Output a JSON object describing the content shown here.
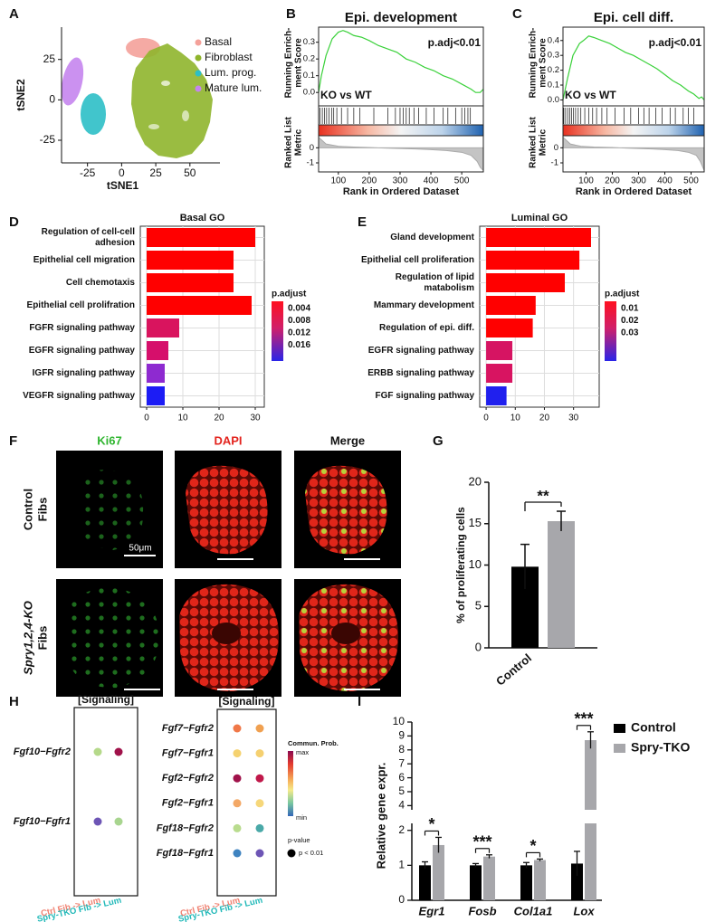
{
  "panel_labels": [
    "A",
    "B",
    "C",
    "D",
    "E",
    "F",
    "G",
    "H",
    "I"
  ],
  "micrographs": {
    "columns": [
      "Ki67",
      "DAPI",
      "Merge"
    ],
    "column_colors": [
      "#2fb52f",
      "#e3231d",
      "#111111"
    ],
    "rows": [
      [
        "Control",
        "Fibs"
      ],
      [
        "Spry1,2,4-KO",
        "Fibs"
      ]
    ],
    "scale_bar": "50μm"
  },
  "chart_data": [
    {
      "type": "scatter",
      "xlabel": "tSNE1",
      "ylabel": "tSNE2",
      "xlim": [
        -44,
        72
      ],
      "ylim": [
        -39,
        45
      ],
      "xticks": [
        -25,
        0,
        25,
        50
      ],
      "yticks": [
        -25,
        0,
        25
      ],
      "series": [
        {
          "name": "Basal",
          "color": "#f4a19a"
        },
        {
          "name": "Fibroblast",
          "color": "#8fb52c"
        },
        {
          "name": "Lum. prog.",
          "color": "#2cbfc6"
        },
        {
          "name": "Mature lum.",
          "color": "#c585ee"
        }
      ]
    },
    {
      "type": "gsea",
      "title": "Epi. development",
      "annotation": "p.adj<0.01",
      "comparison": "KO vs WT",
      "ylabel": [
        "Running Enrich-",
        "ment Score"
      ],
      "metric_label": [
        "Ranked List",
        "Metric"
      ],
      "xlabel": "Rank in Ordered Dataset",
      "xlim": [
        36,
        570
      ],
      "xticks": [
        100,
        200,
        300,
        400,
        500
      ],
      "ylim": [
        -0.08,
        0.39
      ],
      "yticks": [
        {
          "value": 0,
          "label": "0.0"
        },
        0.1,
        0.2,
        0.3
      ],
      "color": "#3ad13a",
      "x": [
        36,
        45,
        60,
        80,
        100,
        115,
        130,
        150,
        175,
        200,
        230,
        260,
        290,
        320,
        350,
        380,
        410,
        440,
        470,
        500,
        530,
        545,
        560,
        570
      ],
      "values": [
        0.0,
        0.1,
        0.22,
        0.32,
        0.36,
        0.37,
        0.36,
        0.34,
        0.33,
        0.31,
        0.28,
        0.26,
        0.24,
        0.2,
        0.18,
        0.15,
        0.13,
        0.1,
        0.08,
        0.05,
        0.02,
        0.0,
        0.0,
        0.02
      ],
      "hits": [
        40,
        48,
        55,
        62,
        70,
        78,
        85,
        95,
        110,
        130,
        150,
        170,
        215,
        260,
        285,
        300,
        310,
        320,
        330,
        345,
        360,
        385,
        410,
        440,
        455,
        480,
        500,
        510,
        520,
        528
      ],
      "metric_ylim": [
        -1.6,
        0.8
      ],
      "metric_yticks": [
        -1,
        0
      ],
      "metric_x": [
        36,
        60,
        100,
        150,
        200,
        250,
        300,
        350,
        400,
        450,
        500,
        530,
        550,
        560,
        570
      ],
      "metric_values": [
        0.7,
        0.25,
        0.1,
        0.05,
        0.02,
        -0.02,
        -0.05,
        -0.08,
        -0.12,
        -0.18,
        -0.3,
        -0.5,
        -0.9,
        -1.3,
        -1.5
      ]
    },
    {
      "type": "gsea",
      "title": "Epi. cell diff.",
      "annotation": "p.adj<0.01",
      "comparison": "KO vs WT",
      "ylabel": [
        "Running Enrich-",
        "ment Score"
      ],
      "metric_label": [
        "Ranked List",
        "Metric"
      ],
      "xlabel": "Rank in Ordered Dataset",
      "xlim": [
        12,
        550
      ],
      "xticks": [
        100,
        200,
        300,
        400,
        500
      ],
      "ylim": [
        -0.04,
        0.49
      ],
      "yticks": [
        {
          "value": 0,
          "label": "0.0"
        },
        0.1,
        0.2,
        0.3,
        0.4
      ],
      "color": "#3ad13a",
      "x": [
        12,
        30,
        50,
        75,
        90,
        110,
        130,
        160,
        190,
        220,
        250,
        280,
        310,
        340,
        370,
        400,
        430,
        460,
        490,
        510,
        530,
        540,
        550
      ],
      "values": [
        0.0,
        0.15,
        0.3,
        0.38,
        0.4,
        0.43,
        0.42,
        0.4,
        0.38,
        0.35,
        0.32,
        0.3,
        0.27,
        0.24,
        0.21,
        0.17,
        0.13,
        0.1,
        0.06,
        0.04,
        0.01,
        0.02,
        0.0
      ],
      "hits": [
        15,
        22,
        30,
        38,
        45,
        52,
        60,
        70,
        80,
        95,
        110,
        125,
        140,
        160,
        180,
        210,
        245,
        270,
        300,
        320,
        340,
        365,
        390,
        420,
        440,
        470,
        490,
        510
      ],
      "metric_ylim": [
        -1.6,
        0.8
      ],
      "metric_yticks": [
        -1,
        0
      ],
      "metric_x": [
        12,
        40,
        80,
        130,
        200,
        250,
        300,
        350,
        400,
        450,
        490,
        520,
        535,
        545,
        550
      ],
      "metric_values": [
        0.7,
        0.25,
        0.1,
        0.05,
        0.02,
        -0.02,
        -0.05,
        -0.08,
        -0.12,
        -0.18,
        -0.3,
        -0.5,
        -0.9,
        -1.3,
        -1.5
      ]
    },
    {
      "type": "barh",
      "title": "Basal GO",
      "categories": [
        [
          "Regulation of cell-cell",
          "adhesion"
        ],
        [
          "Epithelial cell migration"
        ],
        [
          "Cell chemotaxis"
        ],
        [
          "Epithelial cell prolifration"
        ],
        [
          "FGFR signaling pathway"
        ],
        [
          "EGFR signaling pathway"
        ],
        [
          "IGFR signaling pathway"
        ],
        [
          "VEGFR signaling pathway"
        ]
      ],
      "values": [
        30,
        24,
        24,
        29,
        9,
        6,
        5,
        5
      ],
      "colors": [
        "#ff0000",
        "#ff0000",
        "#ff0000",
        "#ff0000",
        "#d9145e",
        "#d60f6b",
        "#8e2ad0",
        "#1c1cf5"
      ],
      "xlim": [
        -1.75,
        32.5
      ],
      "xticks": [
        0,
        10,
        20,
        30
      ],
      "grid": true,
      "legend_title": "p.adjust",
      "legend_ticks": [
        0.004,
        0.008,
        0.012,
        0.016
      ]
    },
    {
      "type": "barh",
      "title": "Luminal GO",
      "categories": [
        [
          "Gland development"
        ],
        [
          "Epithelial cell proliferation"
        ],
        [
          "Regulation of lipid",
          "matabolism"
        ],
        [
          "Mammary development"
        ],
        [
          "Regulation of epi. diff."
        ],
        [
          "EGFR signaling pathway"
        ],
        [
          "ERBB signaling pathway"
        ],
        [
          "FGF signaling pathway"
        ]
      ],
      "values": [
        36,
        32,
        27,
        17,
        16,
        9,
        9,
        7
      ],
      "colors": [
        "#ff0000",
        "#ff0000",
        "#ff0000",
        "#ff0000",
        "#ff0000",
        "#d61462",
        "#d81461",
        "#2020ee"
      ],
      "xlim": [
        -2.2,
        38.8
      ],
      "xticks": [
        0,
        10,
        20,
        30
      ],
      "grid": true,
      "legend_title": "p.adjust",
      "legend_ticks": [
        0.01,
        0.02,
        0.03
      ]
    },
    {
      "type": "bar",
      "ylabel": "% of proliferating cells",
      "categories": [
        "Control",
        null
      ],
      "values": [
        9.8,
        15.3
      ],
      "errors": [
        2.7,
        1.2
      ],
      "colors": [
        "#000000",
        "#a7a7ab"
      ],
      "ylim": [
        0,
        20
      ],
      "yticks": [
        0,
        5,
        10,
        15,
        20
      ],
      "significance": "**"
    },
    {
      "type": "dot",
      "title": "[Signaling]",
      "rows": [
        "Fgf10−Fgfr2",
        "Fgf10−Fgfr1"
      ],
      "columns": [
        "Ctrl Fib -> Lum",
        "Spry-TKO Fib -> Lum"
      ],
      "column_colors": [
        "#f08070",
        "#1fb8b8"
      ],
      "colors": [
        [
          "#b5d98a",
          "#a0124a"
        ],
        [
          "#6d55b5",
          "#a8d58f"
        ]
      ]
    },
    {
      "type": "dot",
      "title": "[Signaling]",
      "rows": [
        "Fgf7−Fgfr2",
        "Fgf7−Fgfr1",
        "Fgf2−Fgfr2",
        "Fgf2−Fgfr1",
        "Fgf18−Fgfr2",
        "Fgf18−Fgfr1"
      ],
      "columns": [
        "Ctrl Fib -> Lum",
        "Spry-TKO Fib -> Lum"
      ],
      "column_colors": [
        "#f08070",
        "#1fb8b8"
      ],
      "colors": [
        [
          "#f07848",
          "#f0a050"
        ],
        [
          "#f5d270",
          "#f5d070"
        ],
        [
          "#a0124a",
          "#c0184a"
        ],
        [
          "#f3a866",
          "#f6d77a"
        ],
        [
          "#b9dc8e",
          "#4aa9a8"
        ],
        [
          "#3f83c0",
          "#6d55b5"
        ]
      ],
      "legend_title": "Commun. Prob.",
      "legend_max": "max",
      "legend_min": "min",
      "size_title": "p-value",
      "size_label": "p < 0.01"
    },
    {
      "type": "grouped",
      "ylabel": "Relative gene expr.",
      "categories": [
        "Egr1",
        "Fosb",
        "Col1a1",
        "Lox"
      ],
      "series": [
        {
          "name": "Control",
          "color": "#000000",
          "values": [
            1.0,
            1.0,
            1.0,
            1.05
          ],
          "errors": [
            0.1,
            0.05,
            0.08,
            0.35
          ]
        },
        {
          "name": "Spry-TKO",
          "color": "#a7a7ab",
          "values": [
            1.58,
            1.25,
            1.15,
            8.7
          ],
          "errors": [
            0.22,
            0.05,
            0.03,
            0.6
          ]
        }
      ],
      "ylim": [
        0,
        10
      ],
      "yticks": [
        0,
        1,
        2,
        4,
        5,
        6,
        7,
        8,
        9,
        10
      ],
      "axis_break": [
        2.2,
        3.7
      ],
      "significance": [
        "*",
        "***",
        "*",
        "***"
      ]
    }
  ]
}
